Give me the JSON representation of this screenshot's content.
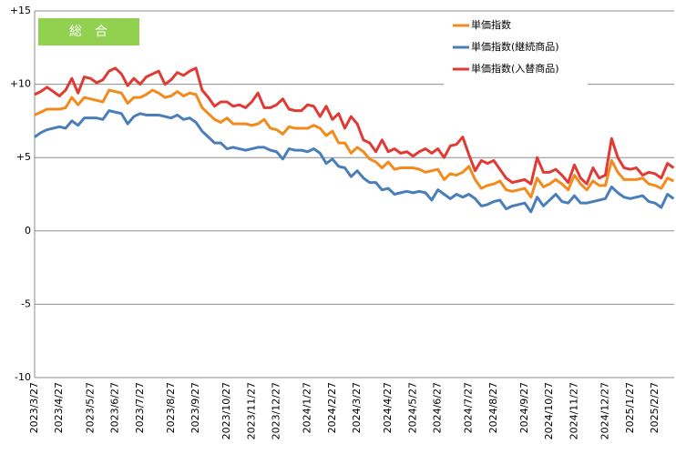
{
  "chart_data": {
    "type": "line",
    "badge": "総　合",
    "categories": [
      "2023/3/27",
      null,
      null,
      null,
      "2023/4/27",
      null,
      null,
      null,
      null,
      "2023/5/27",
      null,
      null,
      null,
      "2023/6/27",
      null,
      null,
      null,
      "2023/7/27",
      null,
      null,
      null,
      null,
      "2023/8/27",
      null,
      null,
      null,
      "2023/9/27",
      null,
      null,
      null,
      null,
      "2023/10/27",
      null,
      null,
      null,
      "2023/11/27",
      null,
      null,
      null,
      "2023/12/27",
      null,
      null,
      null,
      null,
      "2024/1/27",
      null,
      null,
      null,
      "2024/2/27",
      null,
      null,
      null,
      "2024/3/27",
      null,
      null,
      null,
      null,
      "2024/4/27",
      null,
      null,
      null,
      "2024/5/27",
      null,
      null,
      null,
      "2024/6/27",
      null,
      null,
      null,
      null,
      "2024/7/27",
      null,
      null,
      null,
      "2024/8/27",
      null,
      null,
      null,
      null,
      "2024/9/27",
      null,
      null,
      null,
      "2024/10/27",
      null,
      null,
      null,
      "2024/11/27",
      null,
      null,
      null,
      null,
      "2024/12/27",
      null,
      null,
      null,
      "2025/1/27",
      null,
      null,
      null,
      "2025/2/27",
      null,
      null,
      null
    ],
    "series": [
      {
        "name": "単価指数",
        "color": "#f28a1c",
        "values": [
          7.9,
          8.1,
          8.3,
          8.3,
          8.3,
          8.4,
          9.1,
          8.6,
          9.1,
          9.0,
          8.9,
          8.8,
          9.6,
          9.5,
          9.4,
          8.7,
          9.1,
          9.1,
          9.3,
          9.6,
          9.4,
          9.1,
          9.2,
          9.5,
          9.2,
          9.4,
          9.3,
          8.4,
          8.0,
          7.6,
          7.4,
          7.7,
          7.3,
          7.3,
          7.3,
          7.2,
          7.3,
          7.6,
          7.0,
          6.9,
          6.6,
          7.1,
          7.0,
          7.0,
          7.0,
          7.2,
          7.0,
          6.5,
          6.8,
          6.0,
          6.0,
          5.3,
          5.7,
          5.4,
          4.9,
          4.7,
          4.3,
          4.7,
          4.2,
          4.3,
          4.3,
          4.3,
          4.2,
          4.0,
          4.1,
          4.2,
          3.5,
          3.9,
          3.8,
          4.0,
          4.4,
          3.5,
          2.9,
          3.1,
          3.2,
          3.4,
          2.8,
          2.7,
          2.8,
          2.9,
          2.3,
          3.6,
          3.0,
          3.2,
          3.5,
          3.2,
          2.8,
          3.8,
          3.2,
          2.8,
          3.4,
          3.1,
          3.1,
          4.8,
          4.0,
          3.5,
          3.5,
          3.5,
          3.6,
          3.2,
          3.1,
          2.9,
          3.6,
          3.4
        ]
      },
      {
        "name": "単価指数(継続商品)",
        "color": "#4a7ebb",
        "values": [
          6.4,
          6.7,
          6.9,
          7.0,
          7.1,
          7.0,
          7.5,
          7.2,
          7.7,
          7.7,
          7.7,
          7.6,
          8.2,
          8.1,
          8.0,
          7.3,
          7.8,
          8.0,
          7.9,
          7.9,
          7.9,
          7.8,
          7.7,
          7.9,
          7.6,
          7.7,
          7.4,
          6.8,
          6.4,
          6.0,
          6.0,
          5.6,
          5.7,
          5.6,
          5.5,
          5.6,
          5.7,
          5.7,
          5.5,
          5.4,
          4.9,
          5.6,
          5.5,
          5.5,
          5.4,
          5.6,
          5.3,
          4.6,
          4.9,
          4.4,
          4.3,
          3.7,
          4.1,
          3.6,
          3.3,
          3.3,
          2.8,
          2.9,
          2.5,
          2.6,
          2.7,
          2.6,
          2.7,
          2.6,
          2.1,
          2.8,
          2.5,
          2.2,
          2.5,
          2.3,
          2.5,
          2.2,
          1.7,
          1.8,
          2.0,
          2.1,
          1.5,
          1.7,
          1.8,
          1.9,
          1.3,
          2.3,
          1.7,
          2.1,
          2.5,
          2.0,
          1.9,
          2.4,
          1.9,
          1.9,
          2.0,
          2.1,
          2.2,
          3.0,
          2.6,
          2.3,
          2.2,
          2.3,
          2.4,
          2.0,
          1.9,
          1.6,
          2.5,
          2.2
        ]
      },
      {
        "name": "単価指数(入替商品)",
        "color": "#e03a35",
        "values": [
          9.3,
          9.5,
          9.8,
          9.5,
          9.2,
          9.6,
          10.4,
          9.4,
          10.5,
          10.4,
          10.1,
          10.3,
          10.9,
          11.1,
          10.7,
          9.9,
          10.4,
          10.0,
          10.5,
          10.7,
          10.9,
          10.0,
          10.3,
          10.8,
          10.6,
          10.9,
          11.1,
          9.6,
          9.1,
          8.5,
          8.8,
          8.8,
          8.5,
          8.6,
          8.4,
          8.8,
          9.4,
          8.4,
          8.4,
          8.6,
          9.0,
          8.3,
          8.2,
          8.2,
          8.6,
          8.5,
          7.8,
          8.5,
          7.6,
          8.0,
          7.0,
          7.8,
          7.3,
          6.2,
          6.0,
          5.4,
          6.2,
          5.4,
          5.6,
          5.3,
          5.4,
          5.1,
          5.4,
          5.6,
          5.3,
          5.6,
          5.0,
          5.8,
          5.9,
          6.4,
          5.2,
          4.1,
          4.8,
          4.6,
          4.8,
          4.2,
          3.6,
          3.3,
          3.4,
          3.5,
          3.2,
          5.0,
          4.0,
          4.0,
          4.2,
          3.8,
          3.3,
          4.5,
          3.6,
          3.2,
          4.3,
          3.6,
          3.8,
          6.3,
          5.0,
          4.3,
          4.2,
          4.3,
          3.8,
          4.0,
          3.9,
          3.6,
          4.6,
          4.3
        ]
      }
    ],
    "ylim": [
      -10,
      15
    ],
    "yticks": [
      {
        "value": 15,
        "label": "+15"
      },
      {
        "value": 10,
        "label": "+10"
      },
      {
        "value": 5,
        "label": "+5"
      },
      0,
      -5,
      -10
    ],
    "grid": true,
    "legend": "top-right"
  }
}
